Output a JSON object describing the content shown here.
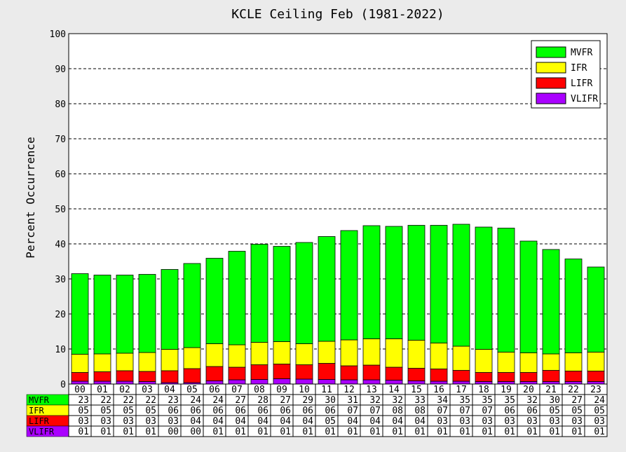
{
  "chart_data": {
    "type": "bar",
    "stacked": true,
    "title": "KCLE Ceiling Feb (1981-2022)",
    "xlabel": "",
    "ylabel": "Percent Occurrence",
    "ylim": [
      0,
      100
    ],
    "yticks": [
      "0",
      "10",
      "20",
      "30",
      "40",
      "50",
      "60",
      "70",
      "80",
      "90",
      "100"
    ],
    "grid": "horizontal dashed",
    "legend_position": "top-right",
    "categories": [
      "00",
      "01",
      "02",
      "03",
      "04",
      "05",
      "06",
      "07",
      "08",
      "09",
      "10",
      "11",
      "12",
      "13",
      "14",
      "15",
      "16",
      "17",
      "18",
      "19",
      "20",
      "21",
      "22",
      "23"
    ],
    "series": [
      {
        "name": "VLIFR",
        "color": "#aa00ff",
        "values": [
          0.8,
          0.8,
          0.8,
          0.7,
          0.4,
          0.4,
          0.9,
          1.2,
          1.3,
          1.5,
          1.4,
          1.3,
          1.2,
          1.2,
          1.1,
          0.9,
          0.8,
          0.8,
          0.7,
          0.7,
          0.7,
          0.7,
          0.7,
          0.7
        ]
      },
      {
        "name": "LIFR",
        "color": "#ff0000",
        "values": [
          2.5,
          2.7,
          3.0,
          2.9,
          3.4,
          4.0,
          4.1,
          3.6,
          4.2,
          4.2,
          4.1,
          4.6,
          4.0,
          4.2,
          3.7,
          3.6,
          3.5,
          3.1,
          2.6,
          2.6,
          2.6,
          3.2,
          3.0,
          3.0
        ]
      },
      {
        "name": "IFR",
        "color": "#ffff00",
        "values": [
          5.2,
          5.1,
          5.0,
          5.4,
          6.1,
          6.0,
          6.5,
          6.4,
          6.4,
          6.4,
          6.0,
          6.3,
          7.4,
          7.5,
          8.1,
          8.0,
          7.4,
          6.9,
          6.6,
          5.8,
          5.6,
          4.7,
          5.2,
          5.4
        ]
      },
      {
        "name": "MVFR",
        "color": "#00ff00",
        "values": [
          23,
          22.5,
          22.3,
          22.3,
          22.8,
          24.0,
          24.4,
          26.7,
          28.0,
          27.2,
          28.9,
          29.9,
          31.2,
          32.3,
          32.1,
          32.8,
          33.6,
          34.8,
          34.9,
          35.4,
          31.9,
          29.8,
          26.8,
          24.3
        ]
      }
    ],
    "table": {
      "col_headers": [
        "00",
        "01",
        "02",
        "03",
        "04",
        "05",
        "06",
        "07",
        "08",
        "09",
        "10",
        "11",
        "12",
        "13",
        "14",
        "15",
        "16",
        "17",
        "18",
        "19",
        "20",
        "21",
        "22",
        "23"
      ],
      "rows": [
        {
          "label": "MVFR",
          "color": "#00ff00",
          "values": [
            "23",
            "22",
            "22",
            "22",
            "23",
            "24",
            "24",
            "27",
            "28",
            "27",
            "29",
            "30",
            "31",
            "32",
            "32",
            "33",
            "34",
            "35",
            "35",
            "35",
            "32",
            "30",
            "27",
            "24"
          ]
        },
        {
          "label": "IFR",
          "color": "#ffff00",
          "values": [
            "05",
            "05",
            "05",
            "05",
            "06",
            "06",
            "06",
            "06",
            "06",
            "06",
            "06",
            "06",
            "07",
            "07",
            "08",
            "08",
            "07",
            "07",
            "07",
            "06",
            "06",
            "05",
            "05",
            "05"
          ]
        },
        {
          "label": "LIFR",
          "color": "#ff0000",
          "values": [
            "03",
            "03",
            "03",
            "03",
            "03",
            "04",
            "04",
            "04",
            "04",
            "04",
            "04",
            "05",
            "04",
            "04",
            "04",
            "04",
            "03",
            "03",
            "03",
            "03",
            "03",
            "03",
            "03",
            "03"
          ]
        },
        {
          "label": "VLIFR",
          "color": "#aa00ff",
          "values": [
            "01",
            "01",
            "01",
            "01",
            "00",
            "00",
            "01",
            "01",
            "01",
            "01",
            "01",
            "01",
            "01",
            "01",
            "01",
            "01",
            "01",
            "01",
            "01",
            "01",
            "01",
            "01",
            "01",
            "01"
          ]
        }
      ]
    },
    "legend": [
      "MVFR",
      "IFR",
      "LIFR",
      "VLIFR"
    ]
  }
}
